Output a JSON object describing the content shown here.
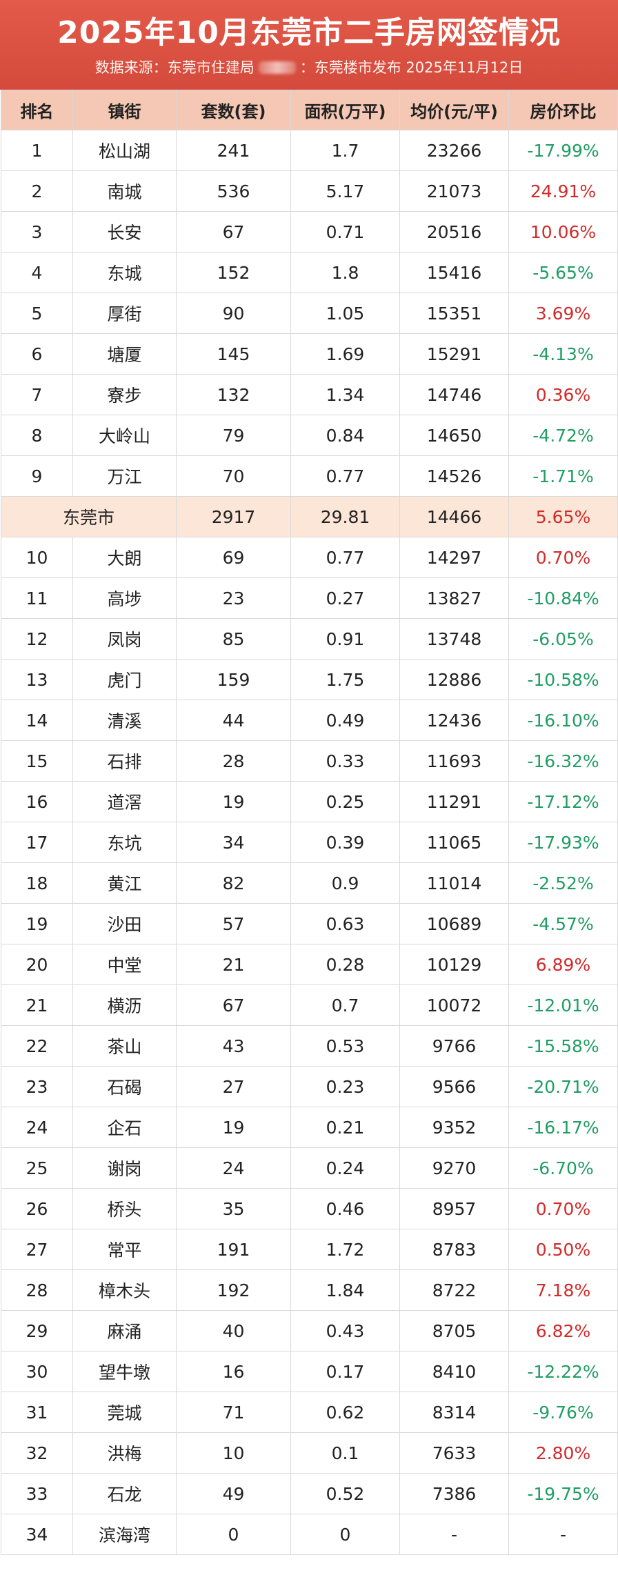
{
  "header": {
    "title": "2025年10月东莞市二手房网签情况",
    "subtitle_left": "数据来源：东莞市住建局",
    "subtitle_right": "：东莞楼市发布  2025年11月12日"
  },
  "table": {
    "columns": [
      "排名",
      "镇街",
      "套数(套)",
      "面积(万平)",
      "均价(元/平)",
      "房价环比"
    ],
    "rows": [
      {
        "rank": "1",
        "town": "松山湖",
        "units": "241",
        "area": "1.7",
        "price": "23266",
        "change": "-17.99%",
        "trend": "neg"
      },
      {
        "rank": "2",
        "town": "南城",
        "units": "536",
        "area": "5.17",
        "price": "21073",
        "change": "24.91%",
        "trend": "pos"
      },
      {
        "rank": "3",
        "town": "长安",
        "units": "67",
        "area": "0.71",
        "price": "20516",
        "change": "10.06%",
        "trend": "pos"
      },
      {
        "rank": "4",
        "town": "东城",
        "units": "152",
        "area": "1.8",
        "price": "15416",
        "change": "-5.65%",
        "trend": "neg"
      },
      {
        "rank": "5",
        "town": "厚街",
        "units": "90",
        "area": "1.05",
        "price": "15351",
        "change": "3.69%",
        "trend": "pos"
      },
      {
        "rank": "6",
        "town": "塘厦",
        "units": "145",
        "area": "1.69",
        "price": "15291",
        "change": "-4.13%",
        "trend": "neg"
      },
      {
        "rank": "7",
        "town": "寮步",
        "units": "132",
        "area": "1.34",
        "price": "14746",
        "change": "0.36%",
        "trend": "pos"
      },
      {
        "rank": "8",
        "town": "大岭山",
        "units": "79",
        "area": "0.84",
        "price": "14650",
        "change": "-4.72%",
        "trend": "neg"
      },
      {
        "rank": "9",
        "town": "万江",
        "units": "70",
        "area": "0.77",
        "price": "14526",
        "change": "-1.71%",
        "trend": "neg"
      },
      {
        "rank": "",
        "town": "东莞市",
        "units": "2917",
        "area": "29.81",
        "price": "14466",
        "change": "5.65%",
        "trend": "pos",
        "total": true
      },
      {
        "rank": "10",
        "town": "大朗",
        "units": "69",
        "area": "0.77",
        "price": "14297",
        "change": "0.70%",
        "trend": "pos"
      },
      {
        "rank": "11",
        "town": "高埗",
        "units": "23",
        "area": "0.27",
        "price": "13827",
        "change": "-10.84%",
        "trend": "neg"
      },
      {
        "rank": "12",
        "town": "凤岗",
        "units": "85",
        "area": "0.91",
        "price": "13748",
        "change": "-6.05%",
        "trend": "neg"
      },
      {
        "rank": "13",
        "town": "虎门",
        "units": "159",
        "area": "1.75",
        "price": "12886",
        "change": "-10.58%",
        "trend": "neg"
      },
      {
        "rank": "14",
        "town": "清溪",
        "units": "44",
        "area": "0.49",
        "price": "12436",
        "change": "-16.10%",
        "trend": "neg"
      },
      {
        "rank": "15",
        "town": "石排",
        "units": "28",
        "area": "0.33",
        "price": "11693",
        "change": "-16.32%",
        "trend": "neg"
      },
      {
        "rank": "16",
        "town": "道滘",
        "units": "19",
        "area": "0.25",
        "price": "11291",
        "change": "-17.12%",
        "trend": "neg"
      },
      {
        "rank": "17",
        "town": "东坑",
        "units": "34",
        "area": "0.39",
        "price": "11065",
        "change": "-17.93%",
        "trend": "neg"
      },
      {
        "rank": "18",
        "town": "黄江",
        "units": "82",
        "area": "0.9",
        "price": "11014",
        "change": "-2.52%",
        "trend": "neg"
      },
      {
        "rank": "19",
        "town": "沙田",
        "units": "57",
        "area": "0.63",
        "price": "10689",
        "change": "-4.57%",
        "trend": "neg"
      },
      {
        "rank": "20",
        "town": "中堂",
        "units": "21",
        "area": "0.28",
        "price": "10129",
        "change": "6.89%",
        "trend": "pos"
      },
      {
        "rank": "21",
        "town": "横沥",
        "units": "67",
        "area": "0.7",
        "price": "10072",
        "change": "-12.01%",
        "trend": "neg"
      },
      {
        "rank": "22",
        "town": "茶山",
        "units": "43",
        "area": "0.53",
        "price": "9766",
        "change": "-15.58%",
        "trend": "neg"
      },
      {
        "rank": "23",
        "town": "石碣",
        "units": "27",
        "area": "0.23",
        "price": "9566",
        "change": "-20.71%",
        "trend": "neg"
      },
      {
        "rank": "24",
        "town": "企石",
        "units": "19",
        "area": "0.21",
        "price": "9352",
        "change": "-16.17%",
        "trend": "neg"
      },
      {
        "rank": "25",
        "town": "谢岗",
        "units": "24",
        "area": "0.24",
        "price": "9270",
        "change": "-6.70%",
        "trend": "neg"
      },
      {
        "rank": "26",
        "town": "桥头",
        "units": "35",
        "area": "0.46",
        "price": "8957",
        "change": "0.70%",
        "trend": "pos"
      },
      {
        "rank": "27",
        "town": "常平",
        "units": "191",
        "area": "1.72",
        "price": "8783",
        "change": "0.50%",
        "trend": "pos"
      },
      {
        "rank": "28",
        "town": "樟木头",
        "units": "192",
        "area": "1.84",
        "price": "8722",
        "change": "7.18%",
        "trend": "pos"
      },
      {
        "rank": "29",
        "town": "麻涌",
        "units": "40",
        "area": "0.43",
        "price": "8705",
        "change": "6.82%",
        "trend": "pos"
      },
      {
        "rank": "30",
        "town": "望牛墩",
        "units": "16",
        "area": "0.17",
        "price": "8410",
        "change": "-12.22%",
        "trend": "neg"
      },
      {
        "rank": "31",
        "town": "莞城",
        "units": "71",
        "area": "0.62",
        "price": "8314",
        "change": "-9.76%",
        "trend": "neg"
      },
      {
        "rank": "32",
        "town": "洪梅",
        "units": "10",
        "area": "0.1",
        "price": "7633",
        "change": "2.80%",
        "trend": "pos"
      },
      {
        "rank": "33",
        "town": "石龙",
        "units": "49",
        "area": "0.52",
        "price": "7386",
        "change": "-19.75%",
        "trend": "neg"
      },
      {
        "rank": "34",
        "town": "滨海湾",
        "units": "0",
        "area": "0",
        "price": "-",
        "change": "-",
        "trend": "neutral"
      }
    ]
  },
  "colors": {
    "header_bg": "#d44a3c",
    "table_header_bg": "#f4c8b4",
    "total_row_bg": "#fbe6d8",
    "positive": "#d22a2a",
    "negative": "#1f9d63"
  }
}
